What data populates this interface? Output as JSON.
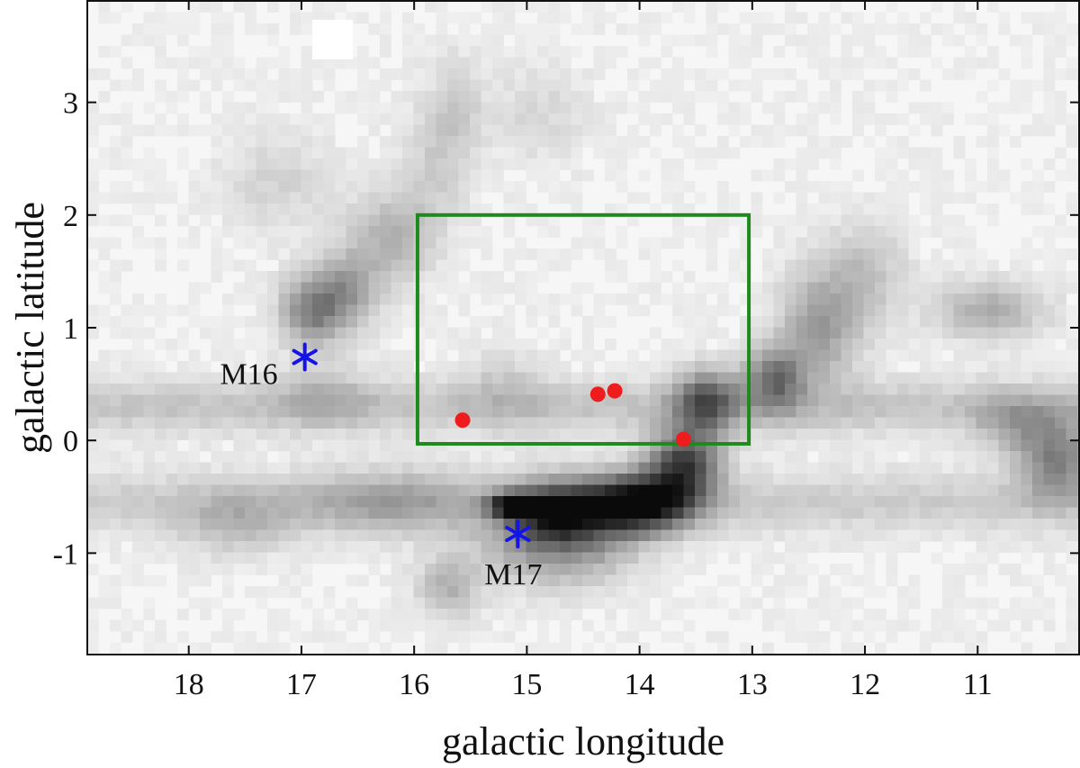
{
  "chart_data": {
    "type": "heatmap",
    "title": "",
    "xlabel": "galactic longitude",
    "ylabel": "galactic latitude",
    "xlim": [
      18.9,
      10.1
    ],
    "ylim": [
      -1.9,
      3.9
    ],
    "x_ticks": [
      {
        "value": 18,
        "label": "18"
      },
      {
        "value": 17,
        "label": "17"
      },
      {
        "value": 16,
        "label": "16"
      },
      {
        "value": 15,
        "label": "15"
      },
      {
        "value": 14,
        "label": "14"
      },
      {
        "value": 13,
        "label": "13"
      },
      {
        "value": 12,
        "label": "12"
      },
      {
        "value": 11,
        "label": "11"
      }
    ],
    "y_ticks": [
      {
        "value": 3,
        "label": "3"
      },
      {
        "value": 2,
        "label": "2"
      },
      {
        "value": 1,
        "label": "1"
      },
      {
        "value": 0,
        "label": "0"
      },
      {
        "value": -1,
        "label": "-1"
      }
    ],
    "grid": false,
    "colormap": "grayscale (white = low, black = high)",
    "intensity_blobs": [
      {
        "l": 16.9,
        "b": 1.15,
        "sigma_l": 0.2,
        "sigma_b": 0.22,
        "amp": 0.45
      },
      {
        "l": 16.6,
        "b": 1.35,
        "sigma_l": 0.2,
        "sigma_b": 0.25,
        "amp": 0.3
      },
      {
        "l": 16.2,
        "b": 1.8,
        "sigma_l": 0.25,
        "sigma_b": 0.3,
        "amp": 0.25
      },
      {
        "l": 15.8,
        "b": 2.5,
        "sigma_l": 0.2,
        "sigma_b": 0.4,
        "amp": 0.15
      },
      {
        "l": 15.6,
        "b": 3.0,
        "sigma_l": 0.15,
        "sigma_b": 0.3,
        "amp": 0.12
      },
      {
        "l": 13.4,
        "b": 0.35,
        "sigma_l": 0.2,
        "sigma_b": 0.2,
        "amp": 0.55
      },
      {
        "l": 13.6,
        "b": -0.2,
        "sigma_l": 0.22,
        "sigma_b": 0.22,
        "amp": 0.7
      },
      {
        "l": 13.9,
        "b": -0.55,
        "sigma_l": 0.28,
        "sigma_b": 0.18,
        "amp": 0.72
      },
      {
        "l": 14.4,
        "b": -0.6,
        "sigma_l": 0.35,
        "sigma_b": 0.2,
        "amp": 0.55
      },
      {
        "l": 14.8,
        "b": -0.65,
        "sigma_l": 0.25,
        "sigma_b": 0.18,
        "amp": 0.4
      },
      {
        "l": 15.1,
        "b": -0.58,
        "sigma_l": 0.15,
        "sigma_b": 0.07,
        "amp": 0.95
      },
      {
        "l": 15.0,
        "b": -0.9,
        "sigma_l": 0.35,
        "sigma_b": 0.25,
        "amp": 0.25
      },
      {
        "l": 14.5,
        "b": -0.95,
        "sigma_l": 0.35,
        "sigma_b": 0.25,
        "amp": 0.25
      },
      {
        "l": 12.8,
        "b": 0.55,
        "sigma_l": 0.18,
        "sigma_b": 0.2,
        "amp": 0.5
      },
      {
        "l": 12.4,
        "b": 1.0,
        "sigma_l": 0.25,
        "sigma_b": 0.35,
        "amp": 0.35
      },
      {
        "l": 12.0,
        "b": 1.5,
        "sigma_l": 0.25,
        "sigma_b": 0.3,
        "amp": 0.2
      },
      {
        "l": 10.9,
        "b": 1.15,
        "sigma_l": 0.35,
        "sigma_b": 0.18,
        "amp": 0.28
      },
      {
        "l": 10.3,
        "b": -0.15,
        "sigma_l": 0.25,
        "sigma_b": 0.25,
        "amp": 0.45
      },
      {
        "l": 10.7,
        "b": 0.15,
        "sigma_l": 0.25,
        "sigma_b": 0.18,
        "amp": 0.22
      },
      {
        "l": 16.2,
        "b": -0.55,
        "sigma_l": 0.55,
        "sigma_b": 0.2,
        "amp": 0.22
      },
      {
        "l": 17.6,
        "b": -0.75,
        "sigma_l": 0.35,
        "sigma_b": 0.2,
        "amp": 0.18
      },
      {
        "l": 15.7,
        "b": -1.3,
        "sigma_l": 0.2,
        "sigma_b": 0.2,
        "amp": 0.25
      },
      {
        "l": 17.2,
        "b": 2.3,
        "sigma_l": 0.35,
        "sigma_b": 0.3,
        "amp": 0.12
      },
      {
        "l": 14.9,
        "b": 2.9,
        "sigma_l": 0.3,
        "sigma_b": 0.3,
        "amp": 0.1
      },
      {
        "l": 15.2,
        "b": 0.5,
        "sigma_l": 0.25,
        "sigma_b": 0.25,
        "amp": 0.12
      },
      {
        "l": 16.8,
        "b": 0.4,
        "sigma_l": 0.3,
        "sigma_b": 0.2,
        "amp": 0.15
      }
    ],
    "intensity_bands": [
      {
        "b_center": 0.3,
        "sigma_b": 0.16,
        "amp": 0.18,
        "l_range": [
          10.1,
          18.9
        ]
      },
      {
        "b_center": -0.55,
        "sigma_b": 0.18,
        "amp": 0.15,
        "l_range": [
          10.1,
          18.9
        ]
      }
    ],
    "region_box": {
      "l_min": 13.03,
      "l_max": 15.97,
      "b_min": -0.03,
      "b_max": 2.0,
      "color": "#1e8a1e"
    },
    "sources": [
      {
        "l": 15.57,
        "b": 0.18
      },
      {
        "l": 14.37,
        "b": 0.41
      },
      {
        "l": 14.22,
        "b": 0.44
      },
      {
        "l": 13.61,
        "b": 0.01
      }
    ],
    "source_color": "#ee1c1c",
    "clusters": [
      {
        "name": "M16",
        "l": 16.97,
        "b": 0.74,
        "label_side": "left"
      },
      {
        "name": "M17",
        "l": 15.08,
        "b": -0.83,
        "label_side": "below"
      }
    ],
    "cluster_color": "#1414e6"
  }
}
